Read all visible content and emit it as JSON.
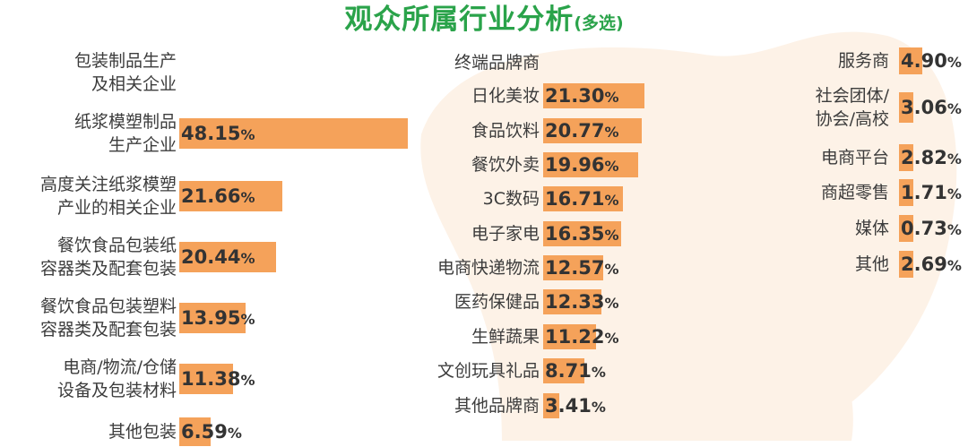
{
  "title": {
    "main": "观众所属行业分析",
    "sub": "(多选)"
  },
  "colors": {
    "bar": "#f5a25a",
    "title": "#2aa34a",
    "watermark": "#fdf2e7",
    "label": "#3c3c3c",
    "value": "#333333"
  },
  "chart_data": [
    {
      "type": "bar",
      "orientation": "horizontal",
      "unit": "%",
      "categories": [
        "包装制品生产\n及相关企业",
        "纸浆模塑制品\n生产企业",
        "高度关注纸浆模塑\n产业的相关企业",
        "餐饮食品包装纸\n容器类及配套包装",
        "餐饮食品包装塑料\n容器类及配套包装",
        "电商/物流/仓储\n设备及包装材料",
        "其他包装"
      ],
      "values": [
        null,
        48.15,
        21.66,
        20.44,
        13.95,
        11.38,
        6.59
      ],
      "value_labels": [
        "",
        "48.15",
        "21.66",
        "20.44",
        "13.95",
        "11.38",
        "6.59"
      ]
    },
    {
      "type": "bar",
      "orientation": "horizontal",
      "unit": "%",
      "categories": [
        "终端品牌商",
        "日化美妆",
        "食品饮料",
        "餐饮外卖",
        "3C数码",
        "电子家电",
        "电商快递物流",
        "医药保健品",
        "生鲜蔬果",
        "文创玩具礼品",
        "其他品牌商"
      ],
      "values": [
        null,
        21.3,
        20.77,
        19.96,
        16.71,
        16.35,
        12.57,
        12.33,
        11.22,
        8.71,
        3.41
      ],
      "value_labels": [
        "",
        "21.30",
        "20.77",
        "19.96",
        "16.71",
        "16.35",
        "12.57",
        "12.33",
        "11.22",
        "8.71",
        "3.41"
      ]
    },
    {
      "type": "bar",
      "orientation": "horizontal",
      "unit": "%",
      "categories": [
        "服务商",
        "社会团体/\n协会/高校",
        "电商平台",
        "商超零售",
        "媒体",
        "其他"
      ],
      "values": [
        4.9,
        3.06,
        2.82,
        1.71,
        0.73,
        2.69
      ],
      "value_labels": [
        "4.90",
        "3.06",
        "2.82",
        "1.71",
        "0.73",
        "2.69"
      ]
    }
  ]
}
